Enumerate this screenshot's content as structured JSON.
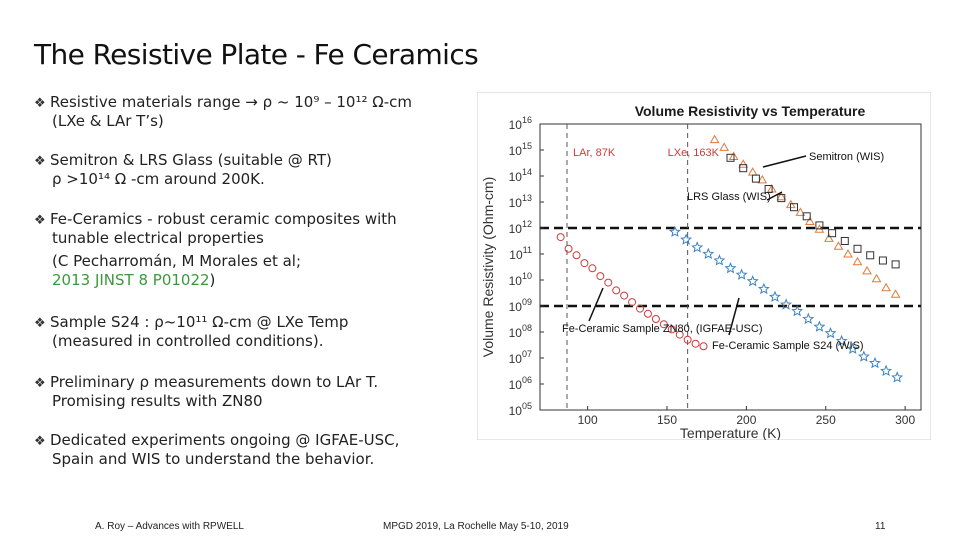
{
  "slide": {
    "title": "The Resistive Plate - Fe Ceramics",
    "bullets": {
      "b1_line1": "Resistive materials range → ρ ~ 10⁹ – 10¹² Ω-cm",
      "b1_line2": "(LXe & LAr T’s)",
      "b2_line1": "Semitron & LRS Glass (suitable @ RT)",
      "b2_line2": "ρ >10¹⁴ Ω -cm  around 200K.",
      "b3_line1": "Fe-Ceramics  - robust ceramic composites with",
      "b3_line2": "tunable electrical properties",
      "b3_line3": "(C Pecharromán, M Morales et al;",
      "b3_line4_link": "2013 JINST 8 P01022",
      "b3_line4_end": ")",
      "b4_line1": "Sample S24 : ρ~10¹¹ Ω-cm @ LXe Temp",
      "b4_line2": "(measured in controlled conditions).",
      "b5_line1": "Preliminary ρ measurements down to LAr T.",
      "b5_line2": "Promising results with ZN80",
      "b6_line1": "Dedicated experiments ongoing @ IGFAE-USC,",
      "b6_line2": "Spain and WIS to understand the behavior."
    },
    "bullet_marker": "❖",
    "footer": {
      "author": "A. Roy – Advances with RPWELL",
      "conference": "MPGD 2019, La Rochelle May 5-10, 2019",
      "page": "11"
    }
  },
  "chart_data": {
    "type": "scatter",
    "title": "Volume Resistivity vs Temperature",
    "xlabel": "Temperature (K)",
    "ylabel": "Volume Resistivity (Ohm-cm)",
    "xlim": [
      70,
      310
    ],
    "ylim_log10": [
      5,
      16
    ],
    "x_ticks": [
      100,
      150,
      200,
      250,
      300
    ],
    "x_tick_labels": [
      "100",
      "150",
      "200",
      "250",
      "300"
    ],
    "y_ticks_exp": [
      5,
      6,
      7,
      8,
      9,
      10,
      11,
      12,
      13,
      14,
      15,
      16
    ],
    "y_tick_base": "10",
    "y_tick_labels": [
      "05",
      "06",
      "07",
      "08",
      "09",
      "10",
      "11",
      "12",
      "13",
      "14",
      "15",
      "16"
    ],
    "vertical_lines": [
      {
        "x": 87,
        "label": "LAr, 87K"
      },
      {
        "x": 163,
        "label": "LXe, 163K"
      }
    ],
    "horizontal_lines_exp": [
      9,
      12
    ],
    "annotations": {
      "semitron": "Semitron (WIS)",
      "lrs_glass": "LRS Glass (WIS)",
      "fe_zn80": "Fe-Ceramic Sample ZN80, (IGFAE-USC)",
      "fe_s24": "Fe-Ceramic Sample S24 (WIS)"
    },
    "series": [
      {
        "name": "Semitron (WIS)",
        "marker": "triangle",
        "color": "#e07a3c",
        "x": [
          180,
          186,
          192,
          198,
          204,
          210,
          216,
          222,
          228,
          234,
          240,
          246,
          252,
          258,
          264,
          270,
          276,
          282,
          288,
          294
        ],
        "y_exp": [
          15.4,
          15.1,
          14.75,
          14.45,
          14.15,
          13.85,
          13.5,
          13.2,
          12.9,
          12.6,
          12.25,
          11.95,
          11.6,
          11.3,
          11.0,
          10.7,
          10.35,
          10.05,
          9.7,
          9.45
        ]
      },
      {
        "name": "LRS Glass (WIS)",
        "marker": "square",
        "color": "#333333",
        "x": [
          190,
          198,
          206,
          214,
          222,
          230,
          238,
          246,
          254,
          262,
          270,
          278,
          286,
          294
        ],
        "y_exp": [
          14.7,
          14.3,
          13.9,
          13.5,
          13.15,
          12.8,
          12.45,
          12.1,
          11.8,
          11.5,
          11.2,
          10.95,
          10.75,
          10.6
        ]
      },
      {
        "name": "Fe-Ceramic ZN80 (IGFAE-USC)",
        "marker": "circle",
        "color": "#d03a3a",
        "x": [
          83,
          88,
          93,
          98,
          103,
          108,
          113,
          118,
          123,
          128,
          133,
          138,
          143,
          148,
          153,
          158,
          163,
          168,
          173
        ],
        "y_exp": [
          11.65,
          11.2,
          10.95,
          10.65,
          10.45,
          10.15,
          9.9,
          9.6,
          9.4,
          9.15,
          8.9,
          8.7,
          8.5,
          8.3,
          8.1,
          7.9,
          7.7,
          7.55,
          7.45
        ]
      },
      {
        "name": "Fe-Ceramic S24 (WIS)",
        "marker": "star",
        "color": "#3b82c4",
        "x": [
          155,
          162,
          169,
          176,
          183,
          190,
          197,
          204,
          211,
          218,
          225,
          232,
          239,
          246,
          253,
          260,
          267,
          274,
          281,
          288,
          295
        ],
        "y_exp": [
          11.85,
          11.55,
          11.25,
          11.0,
          10.75,
          10.45,
          10.2,
          9.95,
          9.65,
          9.35,
          9.05,
          8.8,
          8.5,
          8.2,
          7.95,
          7.65,
          7.35,
          7.05,
          6.8,
          6.5,
          6.25
        ]
      }
    ]
  }
}
